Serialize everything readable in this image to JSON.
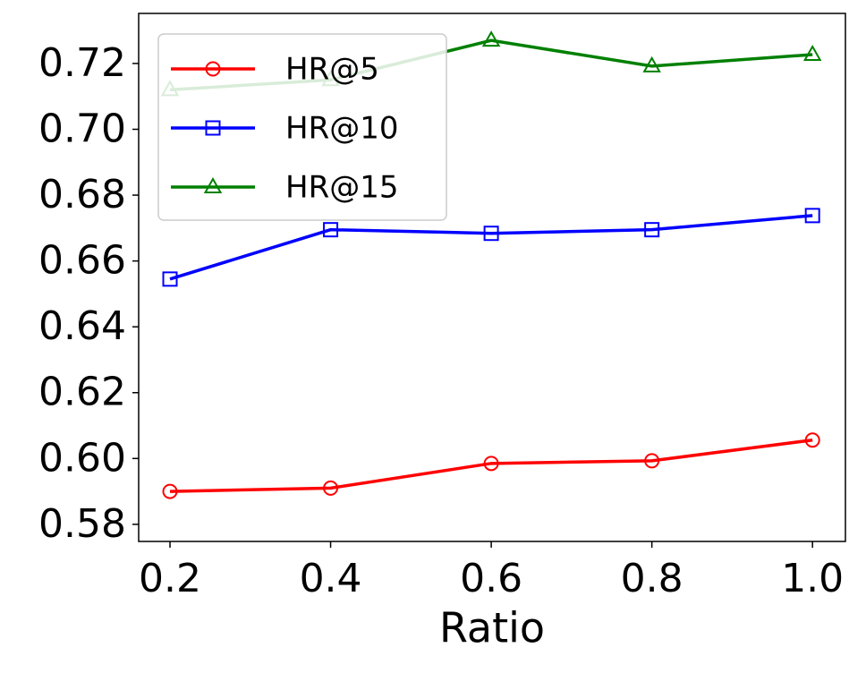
{
  "chart_data": {
    "type": "line",
    "xlabel": "Ratio",
    "x": [
      0.2,
      0.4,
      0.6,
      0.8,
      1.0
    ],
    "series": [
      {
        "name": "HR@5",
        "color": "#ff0000",
        "marker": "circle",
        "values": [
          0.59,
          0.591,
          0.5985,
          0.5993,
          0.6056
        ]
      },
      {
        "name": "HR@10",
        "color": "#0000ff",
        "marker": "square",
        "values": [
          0.6545,
          0.6695,
          0.6684,
          0.6695,
          0.6738
        ]
      },
      {
        "name": "HR@15",
        "color": "#008000",
        "marker": "triangle",
        "values": [
          0.712,
          0.715,
          0.727,
          0.7192,
          0.7227
        ]
      }
    ],
    "xlim": [
      0.161,
      1.041
    ],
    "xticks": [
      0.2,
      0.4,
      0.6,
      0.8,
      {
        "value": 1.0,
        "label": "1.0"
      }
    ],
    "ylim": [
      0.5748,
      0.7352
    ],
    "yticks": [
      0.58,
      {
        "value": 0.6,
        "label": "0.60"
      },
      0.62,
      0.64,
      0.66,
      0.68,
      {
        "value": 0.7,
        "label": "0.70"
      },
      0.72
    ],
    "legend": "upper left"
  }
}
